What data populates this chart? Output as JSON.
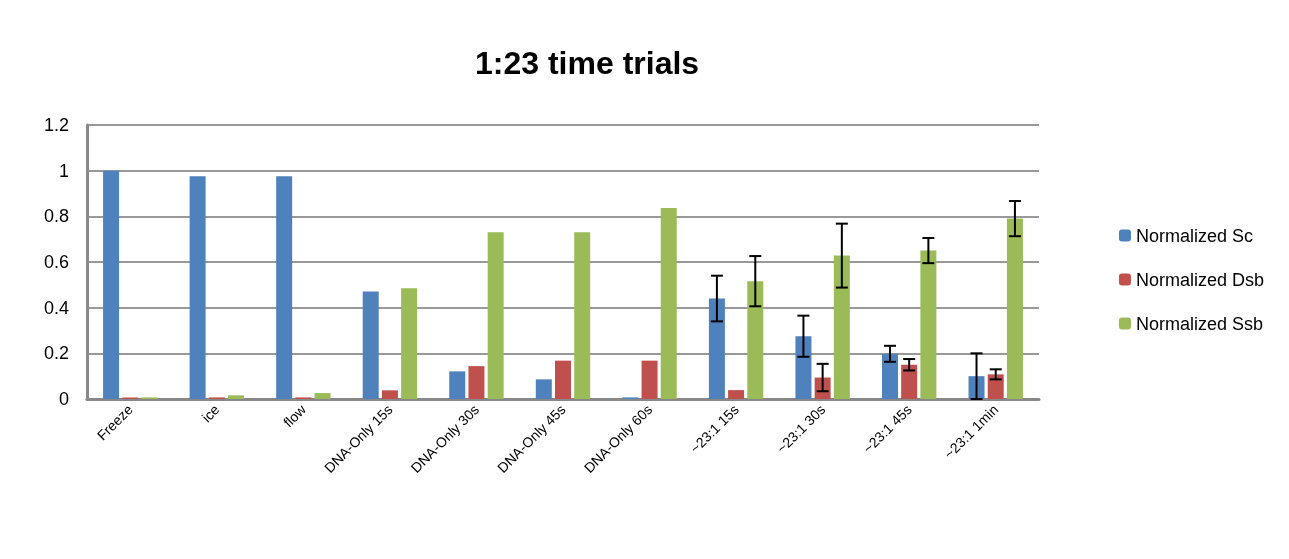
{
  "chart_data": {
    "type": "bar",
    "title": "1:23 time trials",
    "categories": [
      "Freeze",
      "ice",
      "flow",
      "DNA-Only 15s",
      "DNA-Only 30s",
      "DNA-Only 45s",
      "DNA-Only 60s",
      "~23:1 15s",
      "~23:1 30s",
      "~23:1 45s",
      "~23:1 1min"
    ],
    "series": [
      {
        "name": "Normalized Sc",
        "color": "#4f81bd",
        "values": [
          1.0,
          0.976,
          0.976,
          0.471,
          0.121,
          0.086,
          0.007,
          0.44,
          0.275,
          0.198,
          0.1
        ],
        "errors": [
          null,
          null,
          null,
          null,
          null,
          null,
          null,
          0.1,
          0.09,
          0.035,
          0.1
        ]
      },
      {
        "name": "Normalized Dsb",
        "color": "#c0504d",
        "values": [
          0.007,
          0.007,
          0.007,
          0.038,
          0.144,
          0.168,
          0.168,
          0.039,
          0.094,
          0.15,
          0.108
        ],
        "errors": [
          null,
          null,
          null,
          null,
          null,
          null,
          null,
          null,
          0.06,
          0.025,
          0.022
        ]
      },
      {
        "name": "Normalized Ssb",
        "color": "#9bbb59",
        "values": [
          0.007,
          0.016,
          0.026,
          0.485,
          0.73,
          0.73,
          0.836,
          0.516,
          0.628,
          0.65,
          0.79
        ],
        "errors": [
          null,
          null,
          null,
          null,
          null,
          null,
          null,
          0.11,
          0.14,
          0.055,
          0.077
        ]
      }
    ],
    "ylim": [
      0,
      1.2
    ],
    "yticks": [
      0,
      0.2,
      0.4,
      0.6,
      0.8,
      1,
      1.2
    ],
    "grid": "y",
    "legend": "right"
  }
}
